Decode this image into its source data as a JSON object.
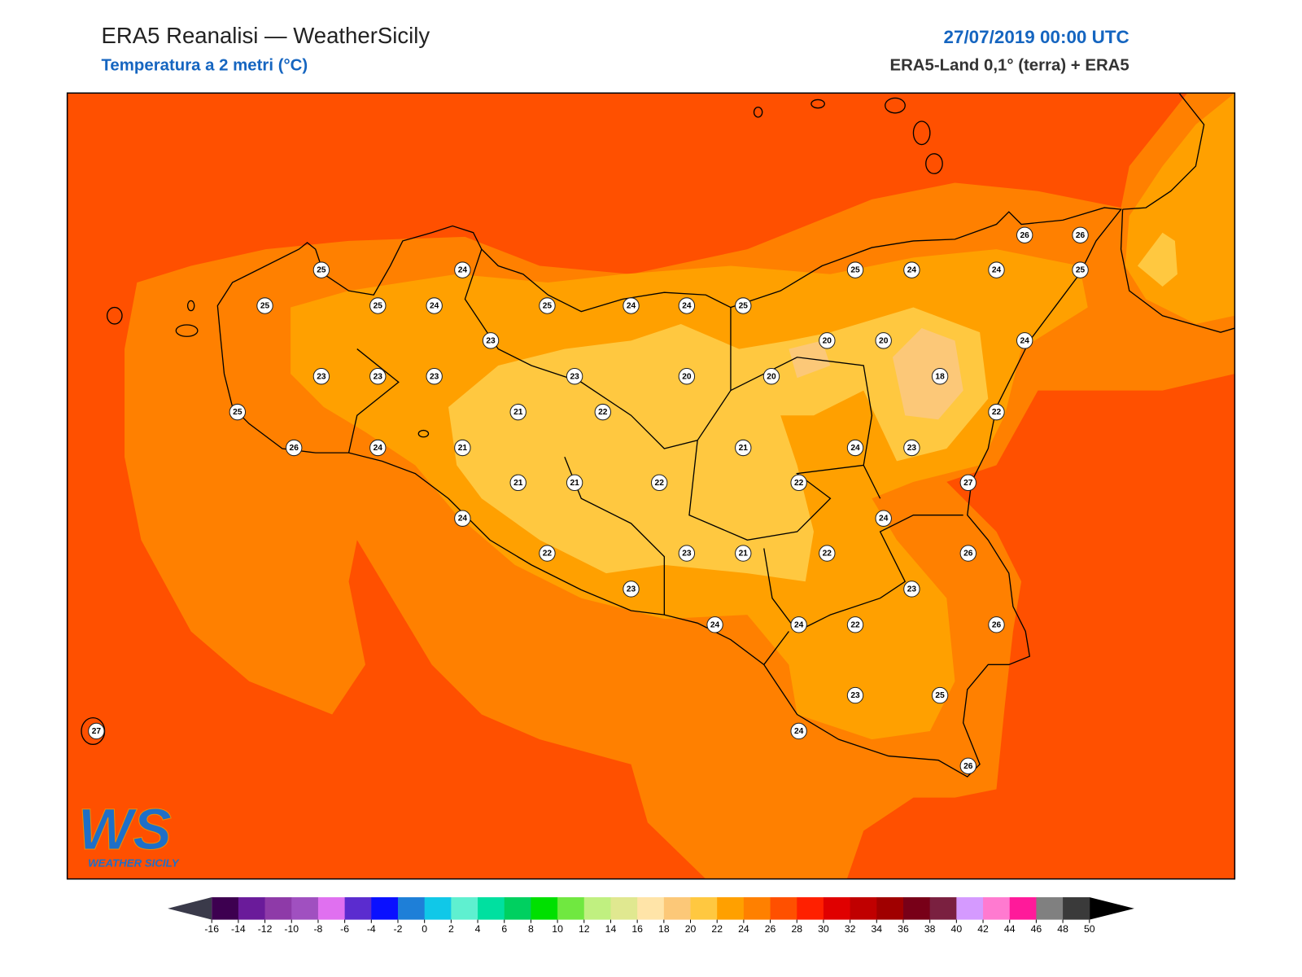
{
  "header": {
    "title": "ERA5 Reanalisi — WeatherSicily",
    "subtitle": "Temperatura a 2 metri (°C)",
    "datetime": "27/07/2019 00:00 UTC",
    "source": "ERA5-Land 0,1° (terra) + ERA5"
  },
  "stations": {
    "values": [
      25,
      24,
      25,
      25,
      24,
      25,
      24,
      24,
      25,
      25,
      24,
      24,
      26,
      26,
      25,
      23,
      20,
      20,
      24,
      23,
      23,
      23,
      23,
      20,
      20,
      18,
      25,
      21,
      22,
      22,
      26,
      24,
      21,
      21,
      24,
      23,
      21,
      21,
      22,
      22,
      27,
      24,
      24,
      22,
      23,
      21,
      22,
      26,
      23,
      23,
      24,
      24,
      22,
      26,
      23,
      25,
      24,
      26,
      27
    ]
  },
  "colorbar": {
    "ticks": [
      -16,
      -14,
      -12,
      -10,
      -8,
      -6,
      -4,
      -2,
      0,
      2,
      4,
      6,
      8,
      10,
      12,
      14,
      16,
      18,
      20,
      22,
      24,
      26,
      28,
      30,
      32,
      34,
      36,
      38,
      40,
      42,
      44,
      46,
      48,
      50
    ],
    "colors": [
      "#3d0050",
      "#6a1b9a",
      "#8e3aa8",
      "#a050c0",
      "#e070f0",
      "#5b2ccf",
      "#0a10ff",
      "#1e7fd8",
      "#10c8e8",
      "#5ff0d0",
      "#00e0a0",
      "#00d060",
      "#00e000",
      "#70e840",
      "#c0f080",
      "#e0e890",
      "#ffe4a8",
      "#fcc878",
      "#ffc840",
      "#ffa000",
      "#ff8000",
      "#ff5000",
      "#ff2000",
      "#e00000",
      "#c00000",
      "#a00000",
      "#780018",
      "#7a2040",
      "#d59aff",
      "#ff7ad0",
      "#ff1a9a",
      "#808080",
      "#3a3a3a"
    ],
    "under_color": "#3a3a4a",
    "over_color": "#000000"
  },
  "logo": {
    "mark": "WS",
    "text": "WEATHER SICILY"
  }
}
